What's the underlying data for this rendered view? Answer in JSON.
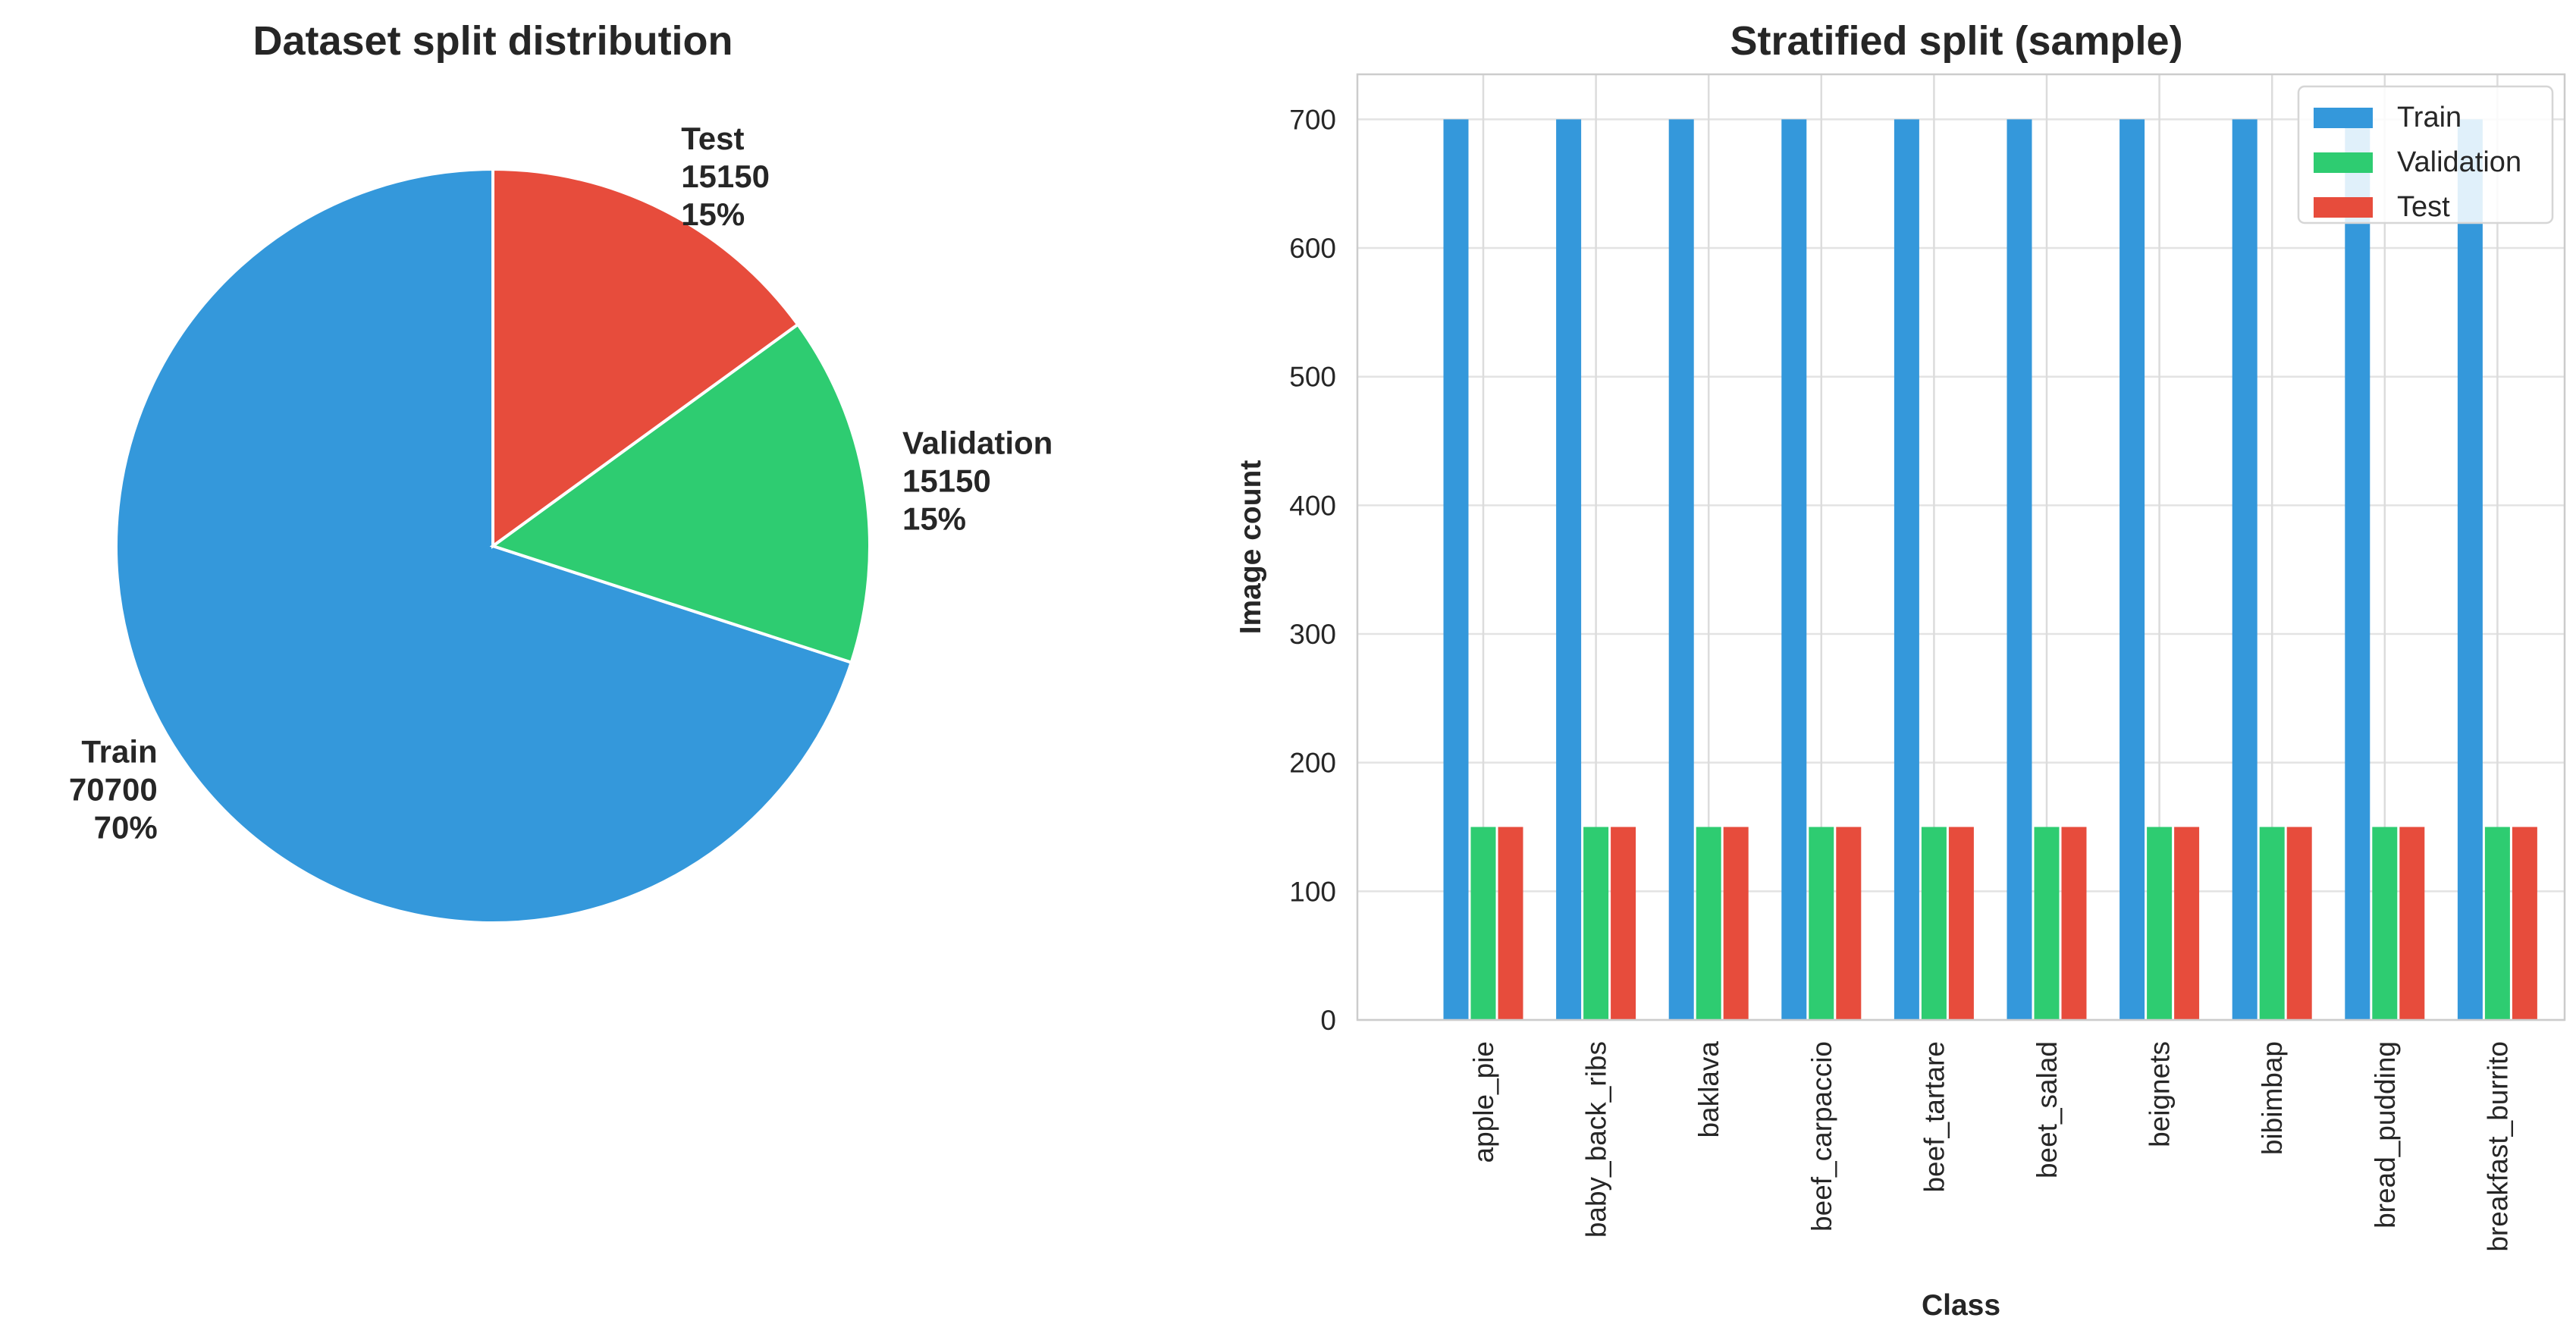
{
  "colors": {
    "train": "#3498db",
    "validation": "#2ecc71",
    "test": "#e74c3c"
  },
  "chart_data": [
    {
      "type": "pie",
      "title": "Dataset split distribution",
      "slices": [
        {
          "label": "Train",
          "value": 70700,
          "pct": "70%",
          "color": "#3498db"
        },
        {
          "label": "Validation",
          "value": 15150,
          "pct": "15%",
          "color": "#2ecc71"
        },
        {
          "label": "Test",
          "value": 15150,
          "pct": "15%",
          "color": "#e74c3c"
        }
      ],
      "start_angle_deg": 90,
      "direction": "clockwise"
    },
    {
      "type": "bar",
      "title": "Stratified split (sample)",
      "xlabel": "Class",
      "ylabel": "Image count",
      "ylim": [
        0,
        735
      ],
      "yticks": [
        0,
        100,
        200,
        300,
        400,
        500,
        600,
        700
      ],
      "grid": true,
      "legend_placement": "top-right",
      "categories": [
        "apple_pie",
        "baby_back_ribs",
        "baklava",
        "beef_carpaccio",
        "beef_tartare",
        "beet_salad",
        "beignets",
        "bibimbap",
        "bread_pudding",
        "breakfast_burrito"
      ],
      "series": [
        {
          "name": "Train",
          "color": "#3498db",
          "values": [
            700,
            700,
            700,
            700,
            700,
            700,
            700,
            700,
            700,
            700
          ]
        },
        {
          "name": "Validation",
          "color": "#2ecc71",
          "values": [
            150,
            150,
            150,
            150,
            150,
            150,
            150,
            150,
            150,
            150
          ]
        },
        {
          "name": "Test",
          "color": "#e74c3c",
          "values": [
            150,
            150,
            150,
            150,
            150,
            150,
            150,
            150,
            150,
            150
          ]
        }
      ]
    }
  ]
}
